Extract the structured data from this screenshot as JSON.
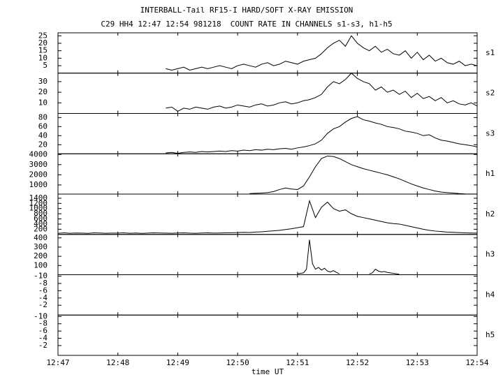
{
  "header": {
    "title": "INTERBALL-Tail RF15-I HARD/SOFT X-RAY EMISSION",
    "subtitle": "C29 HH4 12:47 12:54 981218  COUNT RATE IN CHANNELS s1-s3, h1-h5"
  },
  "x_axis": {
    "xlabel": "time UT",
    "xlim": [
      767,
      774
    ],
    "xticks": [
      {
        "value": 767,
        "label": "12:47"
      },
      {
        "value": 768,
        "label": "12:48"
      },
      {
        "value": 769,
        "label": "12:49"
      },
      {
        "value": 770,
        "label": "12:50"
      },
      {
        "value": 771,
        "label": "12:51"
      },
      {
        "value": 772,
        "label": "12:52"
      },
      {
        "value": 773,
        "label": "12:53"
      },
      {
        "value": 774,
        "label": "12:54"
      }
    ]
  },
  "chart_data": [
    {
      "type": "line",
      "label": "s1",
      "color": "#000000",
      "ylim": [
        0,
        27
      ],
      "yticks": [
        5,
        10,
        15,
        20,
        25
      ],
      "x": [
        768.8,
        768.9,
        769.0,
        769.1,
        769.2,
        769.3,
        769.4,
        769.5,
        769.6,
        769.7,
        769.8,
        769.9,
        770.0,
        770.1,
        770.2,
        770.3,
        770.4,
        770.5,
        770.6,
        770.7,
        770.8,
        770.9,
        771.0,
        771.1,
        771.2,
        771.3,
        771.4,
        771.5,
        771.6,
        771.7,
        771.8,
        771.9,
        772.0,
        772.1,
        772.2,
        772.3,
        772.4,
        772.5,
        772.6,
        772.7,
        772.8,
        772.9,
        773.0,
        773.1,
        773.2,
        773.3,
        773.4,
        773.5,
        773.6,
        773.7,
        773.8,
        773.9,
        774.0
      ],
      "values": [
        3,
        2,
        3,
        4,
        2,
        3,
        4,
        3,
        4,
        5,
        4,
        3,
        5,
        6,
        5,
        4,
        6,
        7,
        5,
        6,
        8,
        7,
        6,
        8,
        9,
        10,
        13,
        17,
        20,
        22,
        18,
        25,
        20,
        17,
        15,
        18,
        14,
        16,
        13,
        12,
        15,
        10,
        14,
        9,
        12,
        8,
        10,
        7,
        6,
        8,
        5,
        6,
        5
      ]
    },
    {
      "type": "line",
      "label": "s2",
      "color": "#000000",
      "ylim": [
        0,
        38
      ],
      "yticks": [
        10,
        20,
        30
      ],
      "x": [
        768.8,
        768.9,
        769.0,
        769.1,
        769.2,
        769.3,
        769.4,
        769.5,
        769.6,
        769.7,
        769.8,
        769.9,
        770.0,
        770.1,
        770.2,
        770.3,
        770.4,
        770.5,
        770.6,
        770.7,
        770.8,
        770.9,
        771.0,
        771.1,
        771.2,
        771.3,
        771.4,
        771.5,
        771.6,
        771.7,
        771.8,
        771.9,
        772.0,
        772.1,
        772.2,
        772.3,
        772.4,
        772.5,
        772.6,
        772.7,
        772.8,
        772.9,
        773.0,
        773.1,
        773.2,
        773.3,
        773.4,
        773.5,
        773.6,
        773.7,
        773.8,
        773.9,
        774.0
      ],
      "values": [
        5,
        6,
        2,
        5,
        4,
        6,
        5,
        4,
        6,
        7,
        5,
        6,
        8,
        7,
        6,
        8,
        9,
        7,
        8,
        10,
        11,
        9,
        10,
        12,
        13,
        15,
        18,
        25,
        30,
        28,
        32,
        38,
        33,
        30,
        28,
        22,
        25,
        20,
        22,
        18,
        21,
        15,
        19,
        14,
        16,
        12,
        15,
        10,
        12,
        9,
        8,
        10,
        7
      ]
    },
    {
      "type": "line",
      "label": "s3",
      "color": "#000000",
      "ylim": [
        0,
        89
      ],
      "yticks": [
        20,
        40,
        60,
        80
      ],
      "x": [
        768.8,
        768.9,
        769.0,
        769.1,
        769.2,
        769.3,
        769.4,
        769.5,
        769.6,
        769.7,
        769.8,
        769.9,
        770.0,
        770.1,
        770.2,
        770.3,
        770.4,
        770.5,
        770.6,
        770.7,
        770.8,
        770.9,
        771.0,
        771.1,
        771.2,
        771.3,
        771.4,
        771.5,
        771.6,
        771.7,
        771.8,
        771.9,
        772.0,
        772.1,
        772.2,
        772.3,
        772.4,
        772.5,
        772.6,
        772.7,
        772.8,
        772.9,
        773.0,
        773.1,
        773.2,
        773.3,
        773.4,
        773.5,
        773.6,
        773.7,
        773.8,
        773.9,
        774.0
      ],
      "values": [
        2,
        3,
        1,
        3,
        4,
        3,
        5,
        4,
        5,
        6,
        5,
        7,
        6,
        8,
        7,
        9,
        8,
        10,
        9,
        11,
        12,
        10,
        13,
        15,
        18,
        22,
        30,
        45,
        55,
        60,
        70,
        78,
        82,
        75,
        72,
        68,
        65,
        60,
        58,
        55,
        50,
        48,
        45,
        40,
        42,
        35,
        30,
        28,
        25,
        22,
        20,
        18,
        15
      ]
    },
    {
      "type": "line",
      "label": "h1",
      "color": "#000000",
      "ylim": [
        100,
        4070
      ],
      "yticks": [
        1000,
        2000,
        3000,
        4000
      ],
      "x": [
        768.8,
        768.9,
        769.0,
        769.1,
        769.2,
        769.3,
        769.4,
        769.5,
        769.6,
        769.7,
        769.8,
        769.9,
        770.0,
        770.1,
        770.2,
        770.3,
        770.4,
        770.5,
        770.6,
        770.7,
        770.8,
        770.9,
        771.0,
        771.1,
        771.2,
        771.3,
        771.4,
        771.5,
        771.6,
        771.7,
        771.8,
        771.9,
        772.0,
        772.1,
        772.2,
        772.3,
        772.4,
        772.5,
        772.6,
        772.7,
        772.8,
        772.9,
        773.0,
        773.1,
        773.2,
        773.3,
        773.4,
        773.5,
        773.6,
        773.7,
        773.8,
        773.9,
        774.0
      ],
      "values": [
        null,
        null,
        null,
        null,
        null,
        null,
        null,
        null,
        null,
        null,
        null,
        null,
        null,
        null,
        150,
        180,
        200,
        250,
        350,
        550,
        700,
        600,
        550,
        900,
        1800,
        2800,
        3600,
        3850,
        3800,
        3600,
        3300,
        3000,
        2800,
        2600,
        2450,
        2300,
        2150,
        2000,
        1800,
        1600,
        1350,
        1100,
        900,
        700,
        550,
        400,
        300,
        250,
        200,
        150,
        120,
        110,
        110
      ]
    },
    {
      "type": "line",
      "label": "h2",
      "color": "#000000",
      "ylim": [
        0,
        1560
      ],
      "yticks": [
        200,
        400,
        600,
        800,
        1000,
        1200,
        1400
      ],
      "x": [
        767.0,
        767.1,
        767.2,
        767.3,
        767.4,
        767.5,
        767.6,
        767.7,
        767.8,
        767.9,
        768.0,
        768.1,
        768.2,
        768.3,
        768.4,
        768.5,
        768.6,
        768.7,
        768.8,
        768.9,
        769.0,
        769.1,
        769.2,
        769.3,
        769.4,
        769.5,
        769.6,
        769.7,
        769.8,
        769.9,
        770.0,
        770.1,
        770.2,
        770.3,
        770.4,
        770.5,
        770.6,
        770.7,
        770.8,
        770.9,
        771.0,
        771.1,
        771.2,
        771.3,
        771.4,
        771.5,
        771.6,
        771.7,
        771.8,
        771.9,
        772.0,
        772.1,
        772.2,
        772.3,
        772.4,
        772.5,
        772.6,
        772.7,
        772.8,
        772.9,
        773.0,
        773.1,
        773.2,
        773.3,
        773.4,
        773.5,
        773.6,
        773.7,
        773.8,
        773.9,
        774.0
      ],
      "values": [
        40,
        60,
        45,
        55,
        50,
        40,
        60,
        55,
        45,
        50,
        50,
        60,
        45,
        55,
        40,
        50,
        60,
        55,
        50,
        45,
        55,
        60,
        50,
        45,
        55,
        60,
        50,
        55,
        60,
        65,
        70,
        80,
        75,
        90,
        100,
        120,
        140,
        160,
        190,
        220,
        260,
        300,
        1300,
        650,
        1050,
        1250,
        1000,
        900,
        950,
        800,
        700,
        650,
        600,
        550,
        500,
        450,
        420,
        400,
        350,
        300,
        250,
        200,
        160,
        130,
        110,
        90,
        80,
        70,
        60,
        55,
        50
      ]
    },
    {
      "type": "line",
      "label": "h3",
      "color": "#000000",
      "ylim": [
        0,
        438
      ],
      "yticks": [
        100,
        200,
        300,
        400
      ],
      "x": [
        771.0,
        771.05,
        771.1,
        771.15,
        771.2,
        771.25,
        771.3,
        771.35,
        771.4,
        771.45,
        771.5,
        771.55,
        771.6,
        771.65,
        771.7,
        771.75,
        771.8,
        771.85,
        771.9,
        771.95,
        772.0,
        772.05,
        772.1,
        772.15,
        772.2,
        772.25,
        772.3,
        772.35,
        772.4,
        772.45,
        772.5,
        772.55,
        772.6,
        772.65,
        772.7
      ],
      "values": [
        10,
        15,
        20,
        60,
        380,
        120,
        60,
        80,
        50,
        70,
        40,
        30,
        45,
        25,
        10,
        null,
        null,
        null,
        null,
        null,
        null,
        null,
        null,
        null,
        10,
        20,
        60,
        40,
        30,
        35,
        25,
        20,
        15,
        10,
        5
      ]
    },
    {
      "type": "line",
      "label": "h4",
      "ylim": [
        0.7,
        -10.4
      ],
      "yticks": [
        -10,
        -8,
        -6,
        -4,
        -2
      ]
    },
    {
      "type": "line",
      "label": "h5",
      "ylim": [
        0.7,
        -10.4
      ],
      "yticks": [
        -10,
        -8,
        -6,
        -4,
        -2
      ]
    }
  ]
}
